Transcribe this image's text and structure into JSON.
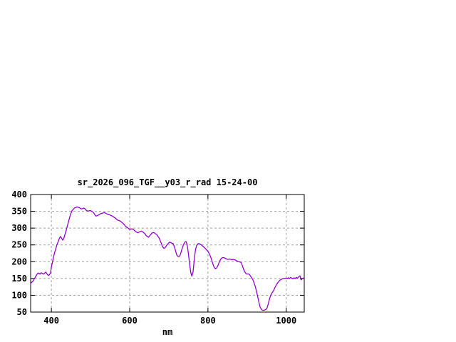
{
  "page": {
    "background": "#ffffff"
  },
  "chart_data": {
    "type": "line",
    "title": "sr_2026_096_TGF__y03_r_rad 15-24-00",
    "xlabel": "nm",
    "ylabel": "",
    "xlim": [
      347,
      1046
    ],
    "ylim": [
      50,
      400
    ],
    "x_ticks": [
      400,
      600,
      800,
      1000
    ],
    "y_ticks": [
      50,
      100,
      150,
      200,
      250,
      300,
      350,
      400
    ],
    "grid": true,
    "legend": "none",
    "line_color": "#9400D3",
    "axis_color": "#000000",
    "grid_color": "#a0a0a0",
    "series": [
      {
        "x": [
          347,
          350,
          353,
          357,
          360,
          363,
          366,
          369,
          371,
          374,
          377,
          380,
          383,
          386,
          389,
          392,
          395,
          398,
          400,
          403,
          405,
          408,
          411,
          414,
          417,
          420,
          423,
          426,
          429,
          432,
          435,
          438,
          441,
          444,
          447,
          450,
          453,
          456,
          459,
          462,
          465,
          468,
          471,
          474,
          477,
          480,
          483,
          486,
          489,
          492,
          495,
          498,
          501,
          504,
          508,
          511,
          514,
          517,
          520,
          523,
          526,
          529,
          532,
          535,
          538,
          541,
          544,
          547,
          550,
          553,
          556,
          559,
          562,
          565,
          568,
          571,
          574,
          577,
          580,
          583,
          586,
          589,
          592,
          595,
          598,
          600,
          603,
          606,
          609,
          612,
          615,
          618,
          621,
          624,
          627,
          630,
          633,
          636,
          639,
          642,
          645,
          648,
          651,
          654,
          657,
          660,
          663,
          666,
          669,
          672,
          675,
          678,
          681,
          684,
          687,
          690,
          693,
          696,
          699,
          702,
          705,
          708,
          711,
          714,
          717,
          720,
          723,
          726,
          729,
          732,
          735,
          738,
          741,
          744,
          747,
          750,
          753,
          756,
          759,
          762,
          765,
          768,
          771,
          774,
          777,
          780,
          783,
          786,
          789,
          792,
          795,
          798,
          801,
          804,
          807,
          810,
          813,
          816,
          819,
          822,
          825,
          828,
          831,
          834,
          837,
          840,
          843,
          846,
          849,
          852,
          855,
          858,
          861,
          864,
          867,
          870,
          873,
          876,
          879,
          882,
          885,
          888,
          891,
          894,
          897,
          900,
          903,
          906,
          909,
          912,
          915,
          918,
          921,
          924,
          927,
          930,
          933,
          936,
          939,
          942,
          945,
          948,
          951,
          954,
          957,
          960,
          963,
          966,
          969,
          972,
          975,
          978,
          981,
          984,
          987,
          990,
          993,
          996,
          999,
          1002,
          1005,
          1008,
          1011,
          1014,
          1017,
          1020,
          1023,
          1026,
          1029,
          1032,
          1035,
          1038,
          1041,
          1045
        ],
        "y": [
          135,
          139,
          142,
          150,
          156,
          162,
          166,
          165,
          163,
          167,
          165,
          163,
          166,
          169,
          163,
          159,
          161,
          168,
          184,
          200,
          212,
          226,
          238,
          250,
          259,
          268,
          275,
          270,
          264,
          270,
          282,
          294,
          307,
          320,
          333,
          344,
          352,
          356,
          360,
          361,
          363,
          362,
          361,
          359,
          357,
          358,
          360,
          357,
          353,
          351,
          351,
          352,
          352,
          349,
          346,
          340,
          336,
          337,
          339,
          341,
          343,
          344,
          345,
          346,
          345,
          343,
          341,
          340,
          339,
          337,
          336,
          333,
          331,
          328,
          325,
          323,
          322,
          320,
          317,
          314,
          311,
          306,
          303,
          301,
          298,
          296,
          297,
          298,
          296,
          293,
          290,
          288,
          286,
          288,
          290,
          291,
          289,
          286,
          283,
          278,
          275,
          273,
          277,
          281,
          285,
          287,
          286,
          283,
          281,
          276,
          271,
          263,
          254,
          245,
          240,
          241,
          246,
          251,
          255,
          258,
          257,
          255,
          254,
          245,
          233,
          221,
          216,
          215,
          220,
          231,
          243,
          252,
          258,
          260,
          250,
          225,
          195,
          168,
          157,
          170,
          205,
          235,
          248,
          253,
          254,
          252,
          250,
          247,
          244,
          241,
          237,
          233,
          229,
          222,
          214,
          203,
          192,
          183,
          179,
          181,
          187,
          196,
          204,
          209,
          212,
          212,
          211,
          209,
          207,
          207,
          208,
          207,
          206,
          207,
          206,
          205,
          203,
          201,
          200,
          199,
          197,
          188,
          178,
          170,
          165,
          163,
          164,
          162,
          157,
          151,
          146,
          136,
          126,
          112,
          97,
          80,
          66,
          59,
          56,
          55,
          56,
          58,
          62,
          74,
          88,
          99,
          106,
          111,
          117,
          125,
          131,
          137,
          141,
          145,
          147,
          149,
          150,
          150,
          151,
          150,
          152,
          150,
          153,
          151,
          149,
          152,
          150,
          153,
          151,
          155,
          158,
          146,
          149,
          152
        ]
      }
    ]
  }
}
